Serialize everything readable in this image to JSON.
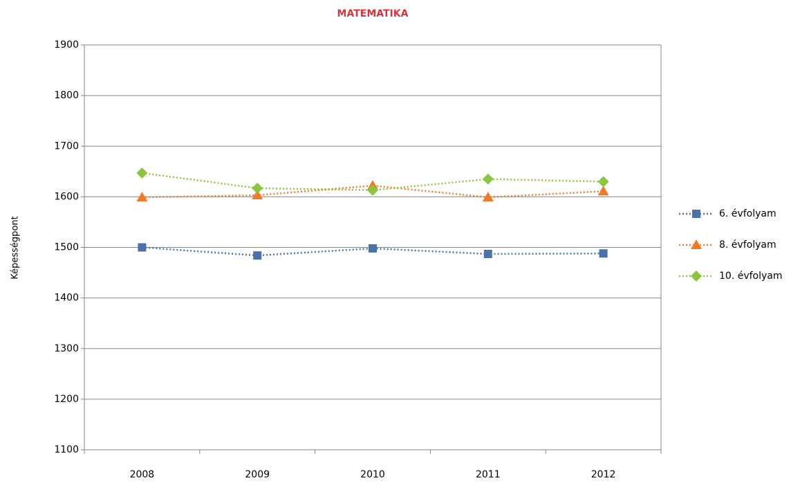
{
  "chart_data": {
    "type": "line",
    "title": "MATEMATIKA",
    "ylabel": "Képességpont",
    "categories": [
      "2008",
      "2009",
      "2010",
      "2011",
      "2012"
    ],
    "series": [
      {
        "name": "6. évfolyam",
        "color": "#4a72a8",
        "marker": "square",
        "values": [
          1500,
          1484,
          1498,
          1487,
          1488
        ]
      },
      {
        "name": "8. évfolyam",
        "color": "#f07a28",
        "marker": "triangle",
        "values": [
          1599,
          1603,
          1622,
          1599,
          1611
        ]
      },
      {
        "name": "10. évfolyam",
        "color": "#8cc63f",
        "marker": "diamond",
        "values": [
          1647,
          1617,
          1613,
          1635,
          1630
        ]
      }
    ],
    "ylim": [
      1100,
      1900
    ],
    "yticks": [
      1100,
      1200,
      1300,
      1400,
      1500,
      1600,
      1700,
      1800,
      1900
    ],
    "grid": true,
    "legend": "right"
  }
}
